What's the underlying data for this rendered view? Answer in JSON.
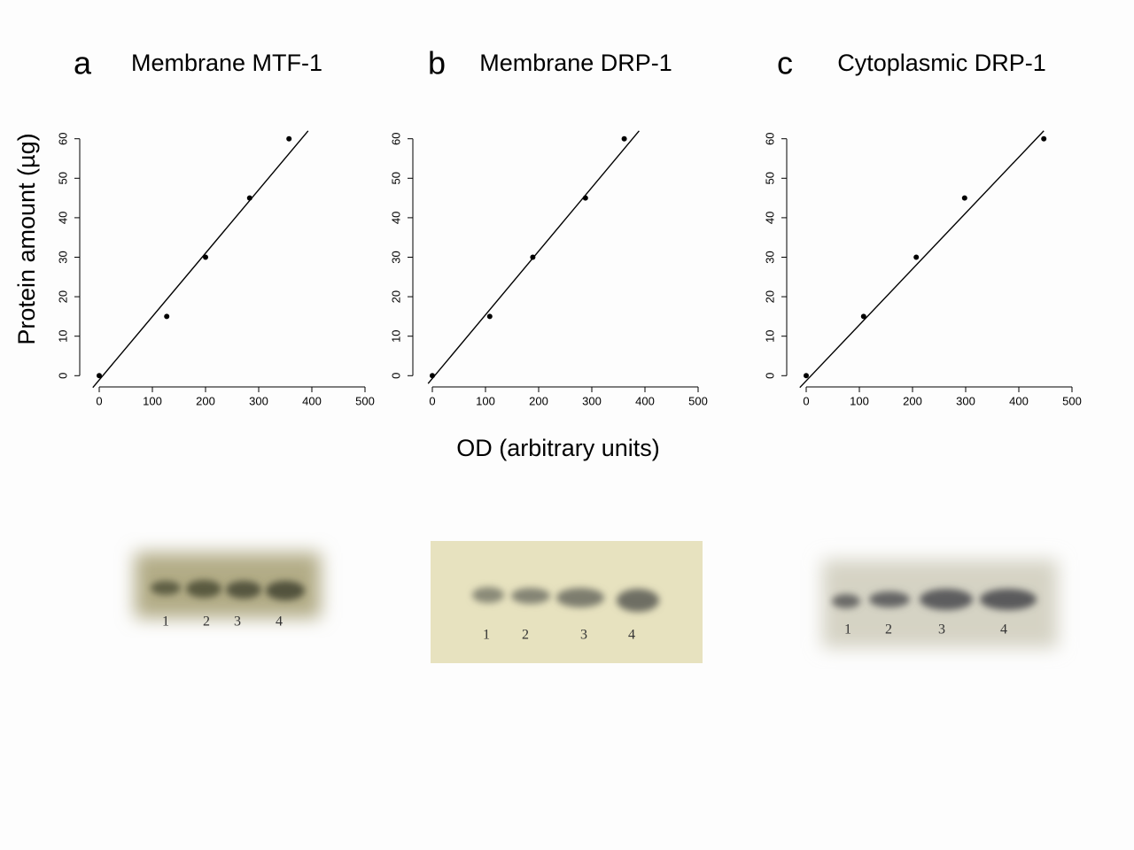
{
  "chart_data": [
    {
      "type": "scatter",
      "panel": "a",
      "title": "Membrane MTF-1",
      "x": [
        0,
        127,
        200,
        283,
        357
      ],
      "y": [
        0,
        15,
        30,
        45,
        60
      ],
      "fit": {
        "x": [
          -12,
          393
        ],
        "y": [
          -3,
          62
        ]
      },
      "xlim": [
        -20,
        520
      ],
      "ylim": [
        -2.4,
        62.4
      ],
      "xticks": [
        0,
        100,
        200,
        300,
        400,
        500
      ],
      "yticks": [
        0,
        10,
        20,
        30,
        40,
        50,
        60
      ],
      "color": "#000000"
    },
    {
      "type": "scatter",
      "panel": "b",
      "title": "Membrane DRP-1",
      "x": [
        0,
        108,
        189,
        288,
        361
      ],
      "y": [
        0,
        15,
        30,
        45,
        60
      ],
      "fit": {
        "x": [
          -8,
          389
        ],
        "y": [
          -2,
          62
        ]
      },
      "xlim": [
        -20,
        520
      ],
      "ylim": [
        -2.4,
        62.4
      ],
      "xticks": [
        0,
        100,
        200,
        300,
        400,
        500
      ],
      "yticks": [
        0,
        10,
        20,
        30,
        40,
        50,
        60
      ],
      "color": "#000000"
    },
    {
      "type": "scatter",
      "panel": "c",
      "title": "Cytoplasmic DRP-1",
      "x": [
        0,
        108,
        207,
        298,
        447
      ],
      "y": [
        0,
        15,
        30,
        45,
        60
      ],
      "fit": {
        "x": [
          -12,
          447
        ],
        "y": [
          -3,
          62
        ]
      },
      "xlim": [
        -20,
        520
      ],
      "ylim": [
        -2.4,
        62.4
      ],
      "xticks": [
        0,
        100,
        200,
        300,
        400,
        500
      ],
      "yticks": [
        0,
        10,
        20,
        30,
        40,
        50,
        60
      ],
      "color": "#000000"
    }
  ],
  "figure": {
    "ylabel": "Protein amount (µg)",
    "xlabel": "OD (arbitrary units)"
  },
  "gels": [
    {
      "lanes": [
        "1",
        "2",
        "3",
        "4"
      ]
    },
    {
      "lanes": [
        "1",
        "2",
        "3",
        "4"
      ]
    },
    {
      "lanes": [
        "1",
        "2",
        "3",
        "4"
      ]
    }
  ]
}
